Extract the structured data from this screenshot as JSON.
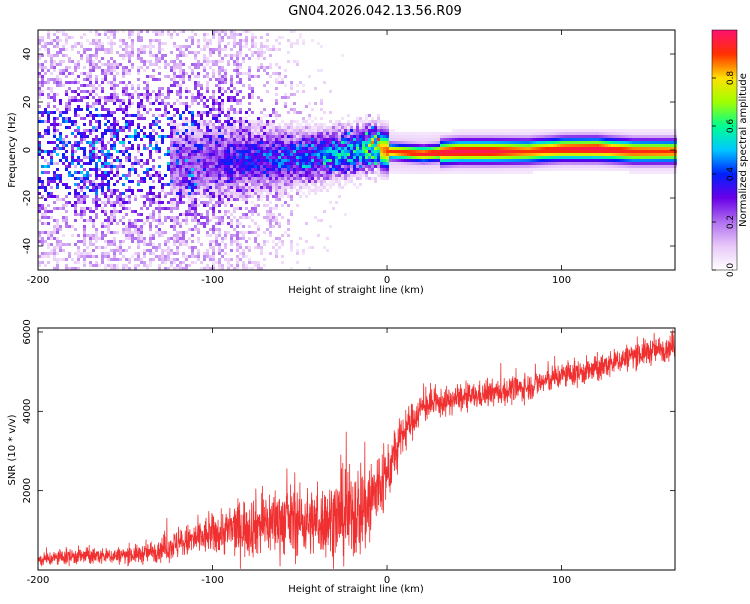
{
  "title": "GN04.2026.042.13.56.R09",
  "spectrogram": {
    "type": "heatmap",
    "xlabel": "Height of straight line (km)",
    "ylabel": "Frequency (Hz)",
    "xlim": [
      -200,
      165
    ],
    "ylim": [
      -50,
      50
    ],
    "x_ticks": [
      "-200",
      "-100",
      "0",
      "100"
    ],
    "x_tick_values": [
      -200,
      -100,
      0,
      100
    ],
    "y_ticks": [
      "40",
      "20",
      "0",
      "-20",
      "-40"
    ],
    "y_tick_values": [
      40,
      20,
      0,
      -20,
      -40
    ],
    "colorbar": {
      "label": "Normalized spectral amplitude",
      "range": [
        0.0,
        1.0
      ],
      "ticks": [
        "0.0",
        "0.2",
        "0.4",
        "0.6",
        "0.8"
      ],
      "tick_values": [
        0.0,
        0.2,
        0.4,
        0.6,
        0.8
      ],
      "colormap": [
        "#ffffff",
        "#e8c8f8",
        "#b070f0",
        "#6a00e8",
        "#0020ff",
        "#00c8ff",
        "#00ff90",
        "#a0ff00",
        "#ffe000",
        "#ff3000",
        "#ff1070"
      ]
    },
    "ridge": {
      "description_points_x": [
        -120,
        -100,
        -80,
        -60,
        -40,
        -20,
        -10,
        0,
        20,
        40,
        60,
        80,
        100,
        120,
        140,
        165
      ],
      "description_points_freq": [
        -4,
        -4,
        -3,
        -3,
        -2,
        0,
        2,
        0,
        -1,
        0,
        0,
        0,
        1,
        1,
        0,
        0
      ],
      "description_points_amp": [
        0.25,
        0.3,
        0.4,
        0.45,
        0.5,
        0.6,
        0.75,
        0.9,
        0.95,
        0.98,
        0.97,
        0.9,
        0.95,
        0.98,
        0.92,
        0.9
      ]
    }
  },
  "snr_plot": {
    "type": "line",
    "xlabel": "Height of straight line (km)",
    "ylabel": "SNR (10 * v/v)",
    "xlim": [
      -200,
      165
    ],
    "ylim": [
      0,
      6100
    ],
    "x_ticks": [
      "-200",
      "-100",
      "0",
      "100"
    ],
    "x_tick_values": [
      -200,
      -100,
      0,
      100
    ],
    "y_ticks": [
      "6000",
      "4000",
      "2000"
    ],
    "y_tick_values": [
      6000,
      4000,
      2000
    ],
    "color": "#f03030",
    "envelope_x": [
      -200,
      -180,
      -160,
      -140,
      -120,
      -100,
      -80,
      -60,
      -40,
      -20,
      -10,
      0,
      10,
      20,
      40,
      60,
      80,
      100,
      120,
      140,
      165
    ],
    "envelope_center": [
      250,
      350,
      350,
      400,
      650,
      900,
      1100,
      1250,
      1200,
      1400,
      1700,
      2400,
      3500,
      4100,
      4300,
      4450,
      4600,
      4900,
      5050,
      5400,
      5650
    ],
    "envelope_noise": [
      150,
      200,
      180,
      220,
      350,
      450,
      700,
      800,
      750,
      1100,
      1200,
      700,
      450,
      350,
      300,
      300,
      300,
      300,
      300,
      300,
      300
    ]
  }
}
